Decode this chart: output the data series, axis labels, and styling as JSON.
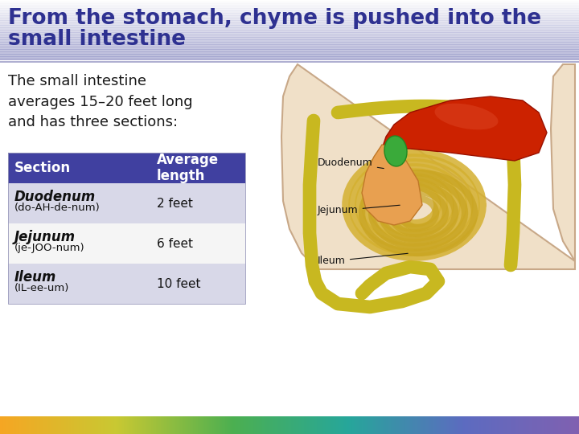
{
  "title_line1": "From the stomach, chyme is pushed into the",
  "title_line2": "small intestine",
  "title_color": "#2e3191",
  "title_fontsize": 19,
  "body_text": "The small intestine\naverages 15–20 feet long\nand has three sections:",
  "body_fontsize": 13,
  "body_color": "#1a1a1a",
  "table_header_bg": "#4040a0",
  "table_header_text": "#ffffff",
  "table_row1_bg": "#d8d8e8",
  "table_row2_bg": "#f5f5f5",
  "table_row3_bg": "#d8d8e8",
  "table_col1": "Section",
  "table_col2": "Average\nlength",
  "table_rows": [
    [
      "Duodenum\n(do-AH-de-num)",
      "2 feet"
    ],
    [
      "Jejunum\n(je-JOO-num)",
      "6 feet"
    ],
    [
      "Ileum\n(IL-ee-um)",
      "10 feet"
    ]
  ],
  "table_fontsize": 11,
  "bg_color": "#ffffff",
  "separator_color": "#8888bb",
  "rainbow_colors_left": "#f5a623",
  "rainbow_colors_mid1": "#c8c832",
  "rainbow_colors_mid2": "#4caf50",
  "rainbow_colors_mid3": "#26a69a",
  "rainbow_colors_mid4": "#5c6bc0",
  "rainbow_colors_right": "#8060b0",
  "header_bg_left": "#2e3191",
  "header_bg_right": "#aaaacc"
}
